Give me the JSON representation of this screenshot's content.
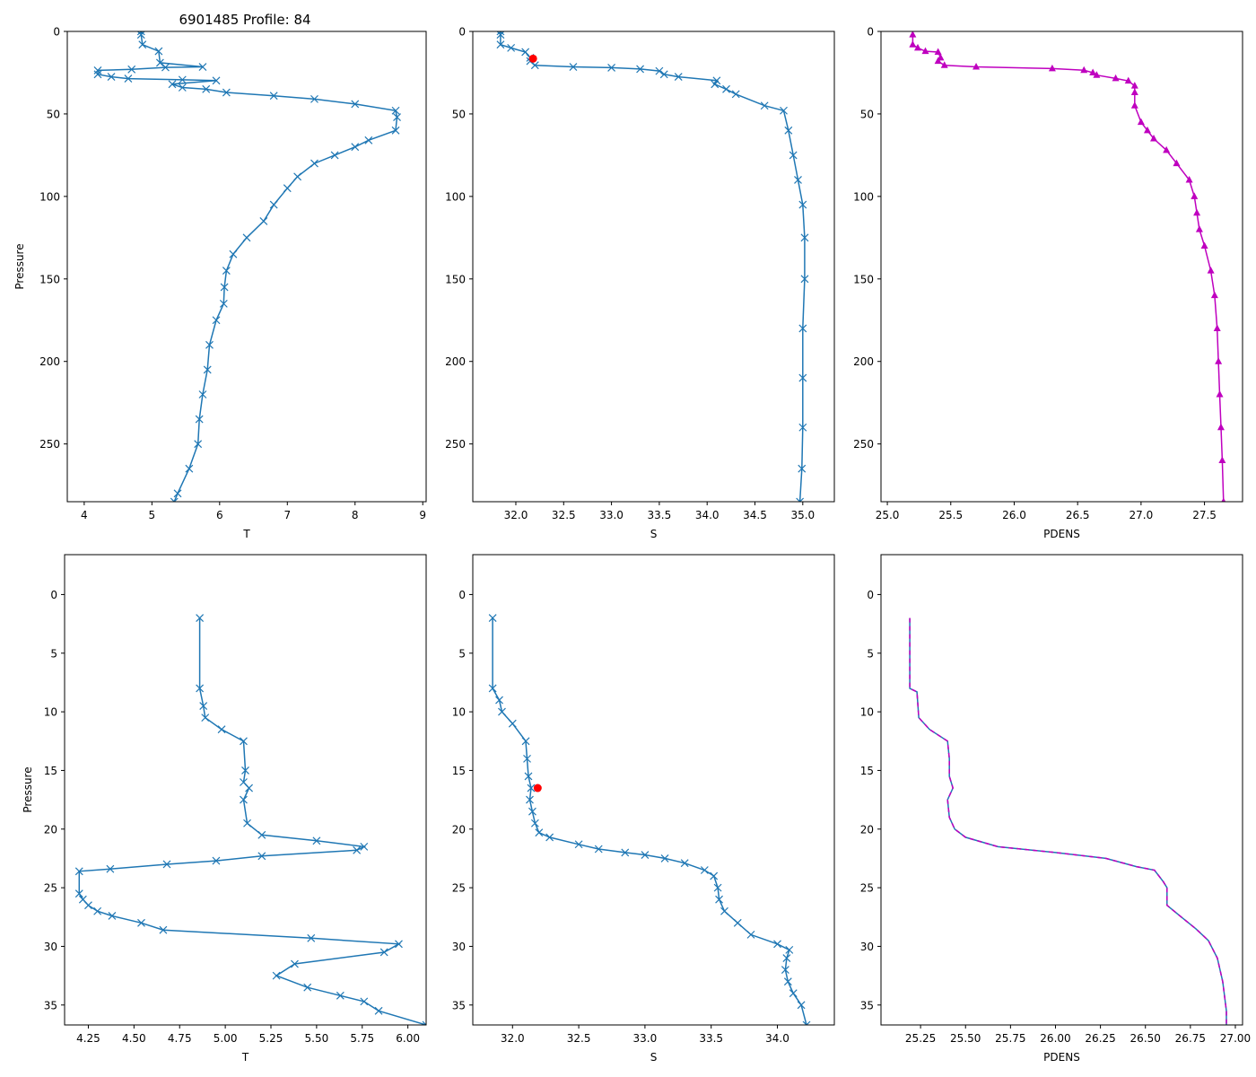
{
  "title": "6901485 Profile: 84",
  "colors": {
    "line": "#1f77b4",
    "marker_red": "#ff0000",
    "density": "#bf00bf"
  },
  "chart_data": [
    {
      "id": "t-full",
      "type": "line",
      "marker": "x",
      "xlabel": "T",
      "ylabel": "Pressure",
      "xlim": [
        3.75,
        9.05
      ],
      "ylim": [
        285,
        0
      ],
      "inverted_y": true,
      "xticks": [
        4,
        5,
        6,
        7,
        8,
        9
      ],
      "xtick_labels": [
        "4",
        "5",
        "6",
        "7",
        "8",
        "9"
      ],
      "yticks": [
        0,
        50,
        100,
        150,
        200,
        250
      ],
      "ytick_labels": [
        "0",
        "50",
        "100",
        "150",
        "200",
        "250"
      ],
      "series": [
        {
          "name": "T",
          "points": [
            [
              4.84,
              0
            ],
            [
              4.84,
              2
            ],
            [
              4.86,
              8
            ],
            [
              5.1,
              12
            ],
            [
              5.12,
              19
            ],
            [
              5.75,
              21.5
            ],
            [
              5.2,
              21.8
            ],
            [
              4.7,
              23
            ],
            [
              4.2,
              23.6
            ],
            [
              4.2,
              26
            ],
            [
              4.4,
              27.5
            ],
            [
              4.65,
              28.6
            ],
            [
              5.45,
              29.3
            ],
            [
              5.95,
              29.8
            ],
            [
              5.3,
              32
            ],
            [
              5.45,
              34
            ],
            [
              5.8,
              35
            ],
            [
              6.1,
              37
            ],
            [
              6.8,
              39
            ],
            [
              7.4,
              41
            ],
            [
              8.0,
              44
            ],
            [
              8.6,
              48
            ],
            [
              8.62,
              52
            ],
            [
              8.6,
              60
            ],
            [
              8.2,
              66
            ],
            [
              8.0,
              70
            ],
            [
              7.7,
              75
            ],
            [
              7.4,
              80
            ],
            [
              7.15,
              88
            ],
            [
              7.0,
              95
            ],
            [
              6.8,
              105
            ],
            [
              6.65,
              115
            ],
            [
              6.4,
              125
            ],
            [
              6.2,
              135
            ],
            [
              6.1,
              145
            ],
            [
              6.07,
              155
            ],
            [
              6.06,
              165
            ],
            [
              5.95,
              175
            ],
            [
              5.85,
              190
            ],
            [
              5.82,
              205
            ],
            [
              5.75,
              220
            ],
            [
              5.7,
              235
            ],
            [
              5.68,
              250
            ],
            [
              5.55,
              265
            ],
            [
              5.38,
              280
            ],
            [
              5.33,
              285
            ]
          ]
        }
      ]
    },
    {
      "id": "s-full",
      "type": "line",
      "marker": "x",
      "xlabel": "S",
      "ylabel": "",
      "xlim": [
        31.55,
        35.33
      ],
      "ylim": [
        285,
        0
      ],
      "inverted_y": true,
      "xticks": [
        32.0,
        32.5,
        33.0,
        33.5,
        34.0,
        34.5,
        35.0
      ],
      "xtick_labels": [
        "32.0",
        "32.5",
        "33.0",
        "33.5",
        "34.0",
        "34.5",
        "35.0"
      ],
      "yticks": [
        0,
        50,
        100,
        150,
        200,
        250
      ],
      "ytick_labels": [
        "0",
        "50",
        "100",
        "150",
        "200",
        "250"
      ],
      "series": [
        {
          "name": "S",
          "points": [
            [
              31.84,
              0
            ],
            [
              31.84,
              2
            ],
            [
              31.84,
              8
            ],
            [
              31.95,
              10
            ],
            [
              32.1,
              12.5
            ],
            [
              32.15,
              16
            ],
            [
              32.15,
              18
            ],
            [
              32.2,
              20.5
            ],
            [
              32.6,
              21.5
            ],
            [
              33.0,
              22
            ],
            [
              33.3,
              22.8
            ],
            [
              33.5,
              24
            ],
            [
              33.55,
              26
            ],
            [
              33.7,
              27.5
            ],
            [
              34.1,
              29.8
            ],
            [
              34.08,
              32
            ],
            [
              34.2,
              35
            ],
            [
              34.3,
              38
            ],
            [
              34.6,
              45
            ],
            [
              34.8,
              48
            ],
            [
              34.85,
              60
            ],
            [
              34.9,
              75
            ],
            [
              34.95,
              90
            ],
            [
              35.0,
              105
            ],
            [
              35.02,
              125
            ],
            [
              35.02,
              150
            ],
            [
              35.0,
              180
            ],
            [
              35.0,
              210
            ],
            [
              35.0,
              240
            ],
            [
              34.99,
              265
            ],
            [
              34.97,
              285
            ]
          ]
        }
      ],
      "highlight": {
        "x": 32.18,
        "y": 16.5,
        "color": "#ff0000"
      }
    },
    {
      "id": "pdens-full",
      "type": "line",
      "marker": "triangle",
      "xlabel": "PDENS",
      "ylabel": "",
      "xlim": [
        24.95,
        27.8
      ],
      "ylim": [
        285,
        0
      ],
      "inverted_y": true,
      "xticks": [
        25.0,
        25.5,
        26.0,
        26.5,
        27.0,
        27.5
      ],
      "xtick_labels": [
        "25.0",
        "25.5",
        "26.0",
        "26.5",
        "27.0",
        "27.5"
      ],
      "yticks": [
        0,
        50,
        100,
        150,
        200,
        250
      ],
      "ytick_labels": [
        "0",
        "50",
        "100",
        "150",
        "200",
        "250"
      ],
      "series": [
        {
          "name": "PDENS",
          "points": [
            [
              25.2,
              2
            ],
            [
              25.2,
              8
            ],
            [
              25.24,
              10
            ],
            [
              25.3,
              12
            ],
            [
              25.4,
              12.5
            ],
            [
              25.42,
              16
            ],
            [
              25.4,
              18
            ],
            [
              25.45,
              20.5
            ],
            [
              25.7,
              21.5
            ],
            [
              26.3,
              22.5
            ],
            [
              26.55,
              23.5
            ],
            [
              26.62,
              25
            ],
            [
              26.65,
              26.5
            ],
            [
              26.8,
              28.5
            ],
            [
              26.9,
              30
            ],
            [
              26.95,
              33
            ],
            [
              26.95,
              37
            ],
            [
              26.95,
              45
            ],
            [
              27.0,
              55
            ],
            [
              27.05,
              60
            ],
            [
              27.1,
              65
            ],
            [
              27.2,
              72
            ],
            [
              27.28,
              80
            ],
            [
              27.38,
              90
            ],
            [
              27.42,
              100
            ],
            [
              27.44,
              110
            ],
            [
              27.46,
              120
            ],
            [
              27.5,
              130
            ],
            [
              27.55,
              145
            ],
            [
              27.58,
              160
            ],
            [
              27.6,
              180
            ],
            [
              27.61,
              200
            ],
            [
              27.62,
              220
            ],
            [
              27.63,
              240
            ],
            [
              27.64,
              260
            ],
            [
              27.65,
              285
            ]
          ]
        }
      ]
    },
    {
      "id": "t-zoom",
      "type": "line",
      "marker": "x",
      "xlabel": "T",
      "ylabel": "Pressure",
      "xlim": [
        4.12,
        6.1
      ],
      "ylim": [
        36.7,
        -3.4
      ],
      "inverted_y": true,
      "xticks": [
        4.25,
        4.5,
        4.75,
        5.0,
        5.25,
        5.5,
        5.75,
        6.0
      ],
      "xtick_labels": [
        "4.25",
        "4.50",
        "4.75",
        "5.00",
        "5.25",
        "5.50",
        "5.75",
        "6.00"
      ],
      "yticks": [
        0,
        5,
        10,
        15,
        20,
        25,
        30,
        35
      ],
      "ytick_labels": [
        "0",
        "5",
        "10",
        "15",
        "20",
        "25",
        "30",
        "35"
      ],
      "series": [
        {
          "name": "T",
          "points": [
            [
              4.86,
              2
            ],
            [
              4.86,
              8
            ],
            [
              4.88,
              9.5
            ],
            [
              4.89,
              10.5
            ],
            [
              4.98,
              11.5
            ],
            [
              5.1,
              12.5
            ],
            [
              5.11,
              15
            ],
            [
              5.1,
              16
            ],
            [
              5.13,
              16.5
            ],
            [
              5.1,
              17.5
            ],
            [
              5.12,
              19.5
            ],
            [
              5.2,
              20.5
            ],
            [
              5.5,
              21
            ],
            [
              5.76,
              21.5
            ],
            [
              5.72,
              21.8
            ],
            [
              5.2,
              22.3
            ],
            [
              4.95,
              22.7
            ],
            [
              4.68,
              23
            ],
            [
              4.37,
              23.4
            ],
            [
              4.2,
              23.6
            ],
            [
              4.2,
              25.5
            ],
            [
              4.22,
              26
            ],
            [
              4.25,
              26.5
            ],
            [
              4.3,
              27
            ],
            [
              4.38,
              27.4
            ],
            [
              4.54,
              28
            ],
            [
              4.66,
              28.6
            ],
            [
              5.47,
              29.3
            ],
            [
              5.95,
              29.8
            ],
            [
              5.87,
              30.5
            ],
            [
              5.38,
              31.5
            ],
            [
              5.28,
              32.5
            ],
            [
              5.45,
              33.5
            ],
            [
              5.63,
              34.2
            ],
            [
              5.76,
              34.7
            ],
            [
              5.84,
              35.5
            ],
            [
              6.1,
              36.7
            ]
          ]
        }
      ]
    },
    {
      "id": "s-zoom",
      "type": "line",
      "marker": "x",
      "xlabel": "S",
      "ylabel": "",
      "xlim": [
        31.7,
        34.43
      ],
      "ylim": [
        36.7,
        -3.4
      ],
      "inverted_y": true,
      "xticks": [
        32.0,
        32.5,
        33.0,
        33.5,
        34.0
      ],
      "xtick_labels": [
        "32.0",
        "32.5",
        "33.0",
        "33.5",
        "34.0"
      ],
      "yticks": [
        0,
        5,
        10,
        15,
        20,
        25,
        30,
        35
      ],
      "ytick_labels": [
        "0",
        "5",
        "10",
        "15",
        "20",
        "25",
        "30",
        "35"
      ],
      "series": [
        {
          "name": "S",
          "points": [
            [
              31.85,
              2
            ],
            [
              31.85,
              8
            ],
            [
              31.9,
              9
            ],
            [
              31.92,
              10
            ],
            [
              32.0,
              11
            ],
            [
              32.1,
              12.5
            ],
            [
              32.11,
              14
            ],
            [
              32.12,
              15.5
            ],
            [
              32.14,
              16.5
            ],
            [
              32.13,
              17.5
            ],
            [
              32.15,
              18.5
            ],
            [
              32.17,
              19.5
            ],
            [
              32.2,
              20.3
            ],
            [
              32.28,
              20.7
            ],
            [
              32.5,
              21.3
            ],
            [
              32.65,
              21.7
            ],
            [
              32.85,
              22
            ],
            [
              33.0,
              22.2
            ],
            [
              33.15,
              22.5
            ],
            [
              33.3,
              22.9
            ],
            [
              33.45,
              23.5
            ],
            [
              33.52,
              24
            ],
            [
              33.55,
              25
            ],
            [
              33.56,
              26
            ],
            [
              33.6,
              27
            ],
            [
              33.7,
              28
            ],
            [
              33.8,
              29
            ],
            [
              34.0,
              29.8
            ],
            [
              34.09,
              30.3
            ],
            [
              34.07,
              31
            ],
            [
              34.06,
              32
            ],
            [
              34.08,
              33
            ],
            [
              34.12,
              34
            ],
            [
              34.18,
              35
            ],
            [
              34.22,
              36.7
            ]
          ]
        }
      ],
      "highlight": {
        "x": 32.19,
        "y": 16.5,
        "color": "#ff0000"
      }
    },
    {
      "id": "pdens-zoom",
      "type": "line",
      "marker": "none",
      "linestyle": "dashed",
      "xlabel": "PDENS",
      "ylabel": "",
      "xlim": [
        25.03,
        27.04
      ],
      "ylim": [
        36.7,
        -3.4
      ],
      "inverted_y": true,
      "xticks": [
        25.25,
        25.5,
        25.75,
        26.0,
        26.25,
        26.5,
        26.75,
        27.0
      ],
      "xtick_labels": [
        "25.25",
        "25.50",
        "25.75",
        "26.00",
        "26.25",
        "26.50",
        "26.75",
        "27.00"
      ],
      "yticks": [
        0,
        5,
        10,
        15,
        20,
        25,
        30,
        35
      ],
      "ytick_labels": [
        "0",
        "5",
        "10",
        "15",
        "20",
        "25",
        "30",
        "35"
      ],
      "series": [
        {
          "name": "PDENS",
          "points": [
            [
              25.19,
              2
            ],
            [
              25.19,
              8
            ],
            [
              25.23,
              8.3
            ],
            [
              25.24,
              10.5
            ],
            [
              25.3,
              11.5
            ],
            [
              25.4,
              12.5
            ],
            [
              25.41,
              14
            ],
            [
              25.41,
              15.5
            ],
            [
              25.43,
              16.5
            ],
            [
              25.4,
              17.5
            ],
            [
              25.41,
              19
            ],
            [
              25.44,
              20
            ],
            [
              25.5,
              20.7
            ],
            [
              25.68,
              21.5
            ],
            [
              26.0,
              22
            ],
            [
              26.28,
              22.5
            ],
            [
              26.45,
              23.2
            ],
            [
              26.55,
              23.5
            ],
            [
              26.6,
              24.5
            ],
            [
              26.62,
              25
            ],
            [
              26.62,
              26.5
            ],
            [
              26.7,
              27.5
            ],
            [
              26.78,
              28.5
            ],
            [
              26.85,
              29.5
            ],
            [
              26.9,
              31
            ],
            [
              26.93,
              33
            ],
            [
              26.95,
              35.5
            ],
            [
              26.95,
              36.7
            ]
          ]
        }
      ]
    }
  ]
}
